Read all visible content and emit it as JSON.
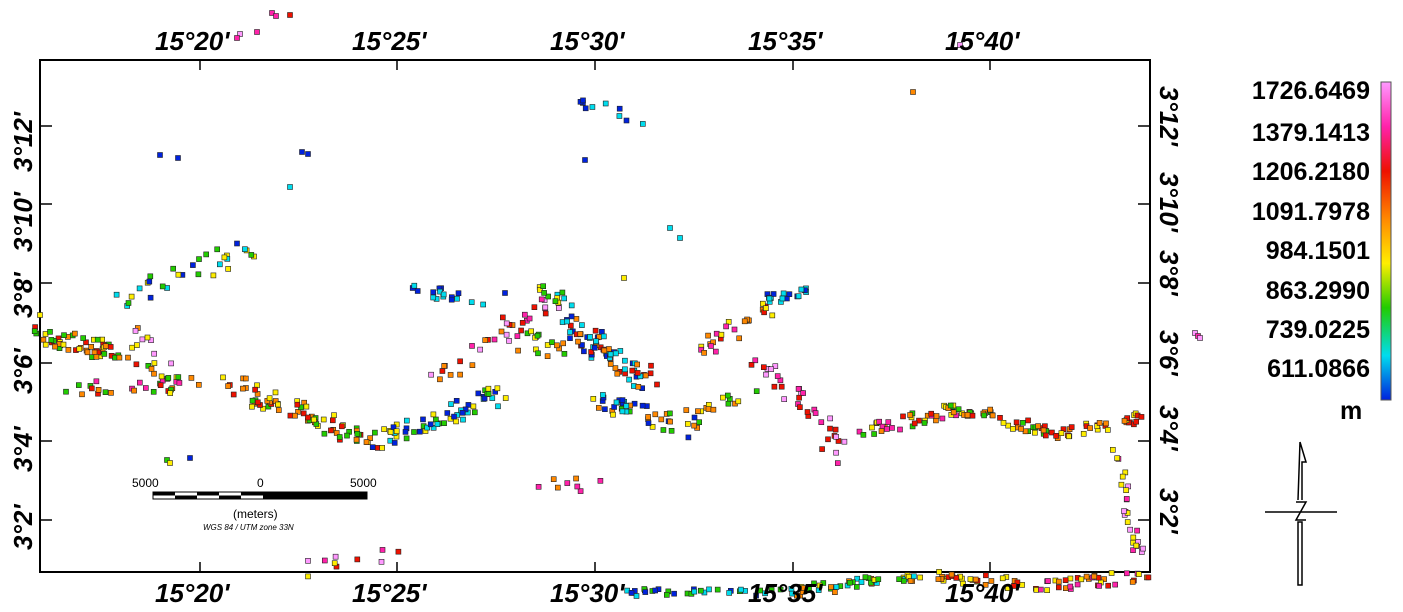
{
  "map": {
    "top_lon_labels": [
      "15°20'",
      "15°25'",
      "15°30'",
      "15°35'",
      "15°40'"
    ],
    "bottom_lon_labels": [
      "15°20'",
      "15°25'",
      "15°30'",
      "15°35'",
      "15°40'"
    ],
    "left_lat_labels": [
      "3°2'",
      "3°4'",
      "3°6'",
      "3°8'",
      "3°10'",
      "3°12'"
    ],
    "right_lat_labels": [
      "3°2'",
      "3°4'",
      "3°6'",
      "3°8'",
      "3°10'",
      "3°12'"
    ]
  },
  "legend": {
    "values": [
      "1726.6469",
      "1379.1413",
      "1206.2180",
      "1091.7978",
      "984.1501",
      "863.2990",
      "739.0225",
      "611.0866"
    ],
    "unit": "m",
    "colors": [
      "#ff99ff",
      "#ff22aa",
      "#ee1100",
      "#ff8800",
      "#ffee00",
      "#22cc00",
      "#00ddee",
      "#0022dd"
    ]
  },
  "scale_bar": {
    "left_label": "5000",
    "mid_label": "0",
    "right_label": "5000",
    "units": "(meters)",
    "projection": "WGS 84 / UTM zone 33N"
  },
  "north_arrow": {
    "icon": "north-arrow-icon"
  },
  "points": {
    "segments": [
      {
        "from": [
          32,
          332
        ],
        "to": [
          140,
          360
        ],
        "n": 55,
        "spread": 10,
        "cols": [
          2,
          3,
          4,
          5
        ]
      },
      {
        "from": [
          60,
          390
        ],
        "to": [
          200,
          385
        ],
        "n": 25,
        "spread": 8,
        "cols": [
          1,
          2,
          3,
          5
        ]
      },
      {
        "from": [
          120,
          300
        ],
        "to": [
          250,
          250
        ],
        "n": 30,
        "spread": 12,
        "cols": [
          5,
          6,
          7,
          4
        ]
      },
      {
        "from": [
          140,
          330
        ],
        "to": [
          180,
          390
        ],
        "n": 18,
        "spread": 10,
        "cols": [
          3,
          4,
          5,
          0
        ]
      },
      {
        "from": [
          230,
          385
        ],
        "to": [
          370,
          440
        ],
        "n": 70,
        "spread": 10,
        "cols": [
          2,
          3,
          4,
          5
        ]
      },
      {
        "from": [
          380,
          440
        ],
        "to": [
          500,
          395
        ],
        "n": 60,
        "spread": 10,
        "cols": [
          5,
          6,
          7,
          4
        ]
      },
      {
        "from": [
          410,
          290
        ],
        "to": [
          480,
          300
        ],
        "n": 18,
        "spread": 6,
        "cols": [
          6,
          7
        ]
      },
      {
        "from": [
          430,
          380
        ],
        "to": [
          520,
          330
        ],
        "n": 20,
        "spread": 8,
        "cols": [
          1,
          2,
          3,
          0
        ]
      },
      {
        "from": [
          500,
          330
        ],
        "to": [
          560,
          300
        ],
        "n": 15,
        "spread": 8,
        "cols": [
          1,
          0,
          2
        ]
      },
      {
        "from": [
          520,
          340
        ],
        "to": [
          560,
          350
        ],
        "n": 16,
        "spread": 10,
        "cols": [
          5,
          4,
          3
        ]
      },
      {
        "from": [
          535,
          290
        ],
        "to": [
          570,
          300
        ],
        "n": 12,
        "spread": 6,
        "cols": [
          5,
          4,
          6
        ]
      },
      {
        "from": [
          560,
          320
        ],
        "to": [
          650,
          380
        ],
        "n": 70,
        "spread": 12,
        "cols": [
          6,
          7,
          6,
          2,
          3
        ]
      },
      {
        "from": [
          590,
          400
        ],
        "to": [
          700,
          430
        ],
        "n": 30,
        "spread": 10,
        "cols": [
          3,
          4,
          5,
          7
        ]
      },
      {
        "from": [
          600,
          400
        ],
        "to": [
          640,
          410
        ],
        "n": 12,
        "spread": 6,
        "cols": [
          7,
          6
        ]
      },
      {
        "from": [
          690,
          410
        ],
        "to": [
          760,
          390
        ],
        "n": 14,
        "spread": 6,
        "cols": [
          5,
          4,
          3
        ]
      },
      {
        "from": [
          700,
          350
        ],
        "to": [
          770,
          310
        ],
        "n": 25,
        "spread": 8,
        "cols": [
          2,
          1,
          3,
          4
        ]
      },
      {
        "from": [
          760,
          300
        ],
        "to": [
          810,
          292
        ],
        "n": 20,
        "spread": 5,
        "cols": [
          6,
          7,
          6
        ]
      },
      {
        "from": [
          760,
          360
        ],
        "to": [
          850,
          460
        ],
        "n": 35,
        "spread": 10,
        "cols": [
          0,
          1,
          2
        ]
      },
      {
        "from": [
          860,
          430
        ],
        "to": [
          960,
          410
        ],
        "n": 40,
        "spread": 7,
        "cols": [
          1,
          2,
          3,
          4,
          5
        ]
      },
      {
        "from": [
          960,
          410
        ],
        "to": [
          1060,
          432
        ],
        "n": 40,
        "spread": 7,
        "cols": [
          2,
          3,
          4,
          5
        ]
      },
      {
        "from": [
          1060,
          432
        ],
        "to": [
          1140,
          418
        ],
        "n": 30,
        "spread": 6,
        "cols": [
          3,
          2,
          4
        ]
      },
      {
        "from": [
          1115,
          450
        ],
        "to": [
          1140,
          560
        ],
        "n": 25,
        "spread": 6,
        "cols": [
          0,
          1,
          4
        ]
      },
      {
        "from": [
          800,
          590
        ],
        "to": [
          920,
          575
        ],
        "n": 40,
        "spread": 6,
        "cols": [
          3,
          4,
          5,
          6
        ]
      },
      {
        "from": [
          920,
          575
        ],
        "to": [
          1040,
          585
        ],
        "n": 30,
        "spread": 6,
        "cols": [
          3,
          4,
          2
        ]
      },
      {
        "from": [
          1040,
          587
        ],
        "to": [
          1150,
          575
        ],
        "n": 35,
        "spread": 6,
        "cols": [
          1,
          2,
          3,
          4
        ]
      },
      {
        "from": [
          620,
          592
        ],
        "to": [
          800,
          592
        ],
        "n": 35,
        "spread": 4,
        "cols": [
          6,
          7,
          5
        ]
      },
      {
        "from": [
          580,
          100
        ],
        "to": [
          640,
          125
        ],
        "n": 10,
        "spread": 8,
        "cols": [
          6,
          7
        ]
      },
      {
        "from": [
          520,
          480
        ],
        "to": [
          600,
          485
        ],
        "n": 8,
        "spread": 8,
        "cols": [
          1,
          2,
          3
        ]
      },
      {
        "from": [
          300,
          570
        ],
        "to": [
          400,
          550
        ],
        "n": 10,
        "spread": 10,
        "cols": [
          0,
          1,
          2,
          4
        ]
      }
    ],
    "extras": [
      [
        160,
        155,
        7
      ],
      [
        178,
        158,
        7
      ],
      [
        302,
        152,
        7
      ],
      [
        308,
        154,
        7
      ],
      [
        290,
        187,
        6
      ],
      [
        585,
        160,
        7
      ],
      [
        670,
        228,
        6
      ],
      [
        680,
        238,
        6
      ],
      [
        624,
        278,
        4
      ],
      [
        913,
        92,
        3
      ],
      [
        1195,
        333,
        0
      ],
      [
        1198,
        336,
        1
      ],
      [
        1200,
        338,
        0
      ],
      [
        190,
        458,
        7
      ],
      [
        167,
        460,
        5
      ],
      [
        170,
        463,
        4
      ],
      [
        240,
        34,
        0
      ],
      [
        237,
        38,
        1
      ],
      [
        257,
        32,
        1
      ],
      [
        272,
        13,
        1
      ],
      [
        276,
        16,
        1
      ],
      [
        290,
        15,
        2
      ],
      [
        960,
        45,
        0
      ],
      [
        505,
        293,
        7
      ],
      [
        40,
        315,
        4
      ]
    ]
  }
}
